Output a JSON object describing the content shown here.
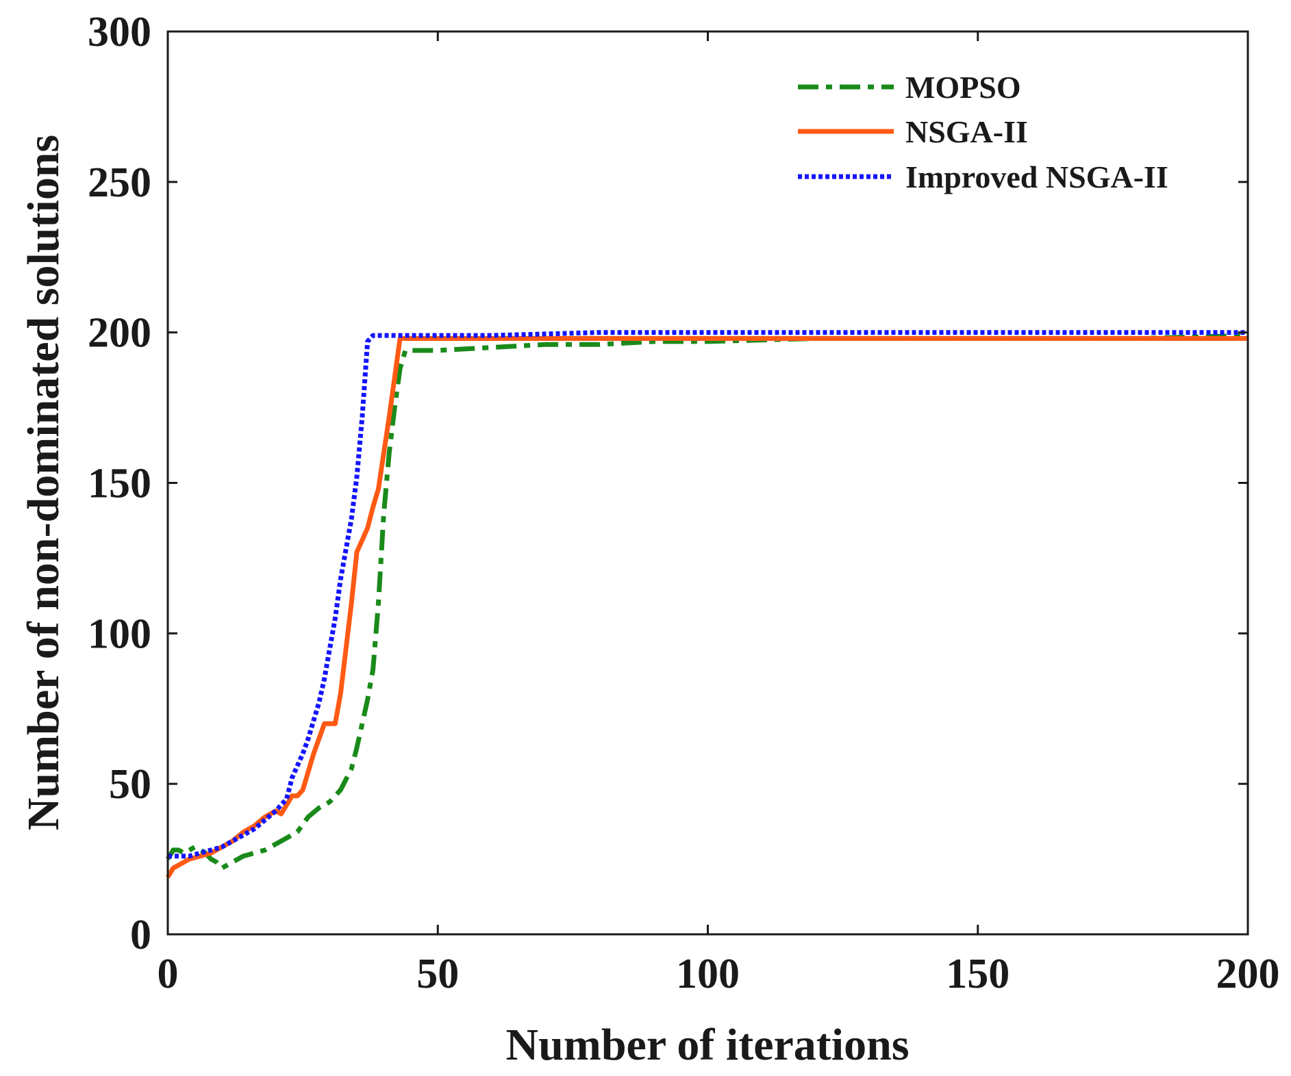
{
  "chart_data": {
    "type": "line",
    "title": "",
    "xlabel": "Number of iterations",
    "ylabel": "Number of non-dominated solutions",
    "xlim": [
      0,
      200
    ],
    "ylim": [
      0,
      300
    ],
    "xticks": [
      0,
      50,
      100,
      150,
      200
    ],
    "yticks": [
      0,
      50,
      100,
      150,
      200,
      250,
      300
    ],
    "xtick_labels": [
      "0",
      "50",
      "100",
      "150",
      "200"
    ],
    "ytick_labels": [
      "0",
      "50",
      "100",
      "150",
      "200",
      "250",
      "300"
    ],
    "grid": false,
    "legend_position": "top-right",
    "series": [
      {
        "name": "MOPSO",
        "color": "#1a8a1a",
        "style": "dash-dot",
        "x": [
          0,
          1,
          2,
          3,
          4,
          5,
          6,
          7,
          8,
          9,
          10,
          12,
          14,
          16,
          18,
          20,
          22,
          24,
          26,
          28,
          30,
          32,
          34,
          35,
          36,
          37,
          38,
          39,
          40,
          41,
          42,
          43,
          44,
          46,
          50,
          60,
          70,
          80,
          90,
          100,
          120,
          150,
          180,
          200
        ],
        "y": [
          25,
          28,
          28,
          27,
          28,
          29,
          28,
          27,
          25,
          24,
          22,
          24,
          26,
          27,
          28,
          30,
          32,
          34,
          39,
          42,
          44,
          48,
          55,
          62,
          70,
          78,
          88,
          110,
          140,
          160,
          175,
          188,
          194,
          194,
          194,
          195,
          196,
          196,
          197,
          197,
          198,
          198,
          198,
          199
        ]
      },
      {
        "name": "NSGA-II",
        "color": "#ff5a14",
        "style": "solid",
        "x": [
          0,
          1,
          2,
          3,
          4,
          6,
          8,
          10,
          12,
          14,
          16,
          18,
          20,
          21,
          22,
          23,
          24,
          25,
          26,
          27,
          28,
          29,
          30,
          31,
          32,
          33,
          34,
          35,
          36,
          37,
          38,
          39,
          40,
          41,
          42,
          43,
          44,
          50,
          60,
          80,
          100,
          150,
          200
        ],
        "y": [
          19,
          22,
          23,
          24,
          25,
          26,
          27,
          29,
          31,
          34,
          36,
          39,
          41,
          40,
          43,
          46,
          46,
          48,
          54,
          60,
          65,
          70,
          70,
          70,
          80,
          95,
          110,
          127,
          131,
          135,
          142,
          148,
          160,
          172,
          185,
          198,
          198,
          198,
          198,
          198,
          198,
          198,
          198
        ]
      },
      {
        "name": "Improved NSGA-II",
        "color": "#1414ff",
        "style": "dotted",
        "x": [
          0,
          2,
          4,
          6,
          8,
          10,
          12,
          14,
          16,
          18,
          20,
          21,
          22,
          23,
          24,
          25,
          26,
          27,
          28,
          29,
          30,
          31,
          32,
          33,
          34,
          35,
          36,
          37,
          38,
          40,
          50,
          60,
          80,
          100,
          150,
          200
        ],
        "y": [
          26,
          26,
          26,
          27,
          28,
          29,
          31,
          33,
          35,
          38,
          41,
          43,
          45,
          52,
          56,
          60,
          65,
          71,
          77,
          85,
          95,
          105,
          118,
          128,
          138,
          152,
          172,
          197,
          199,
          199,
          199,
          199,
          200,
          200,
          200,
          200
        ]
      }
    ]
  }
}
